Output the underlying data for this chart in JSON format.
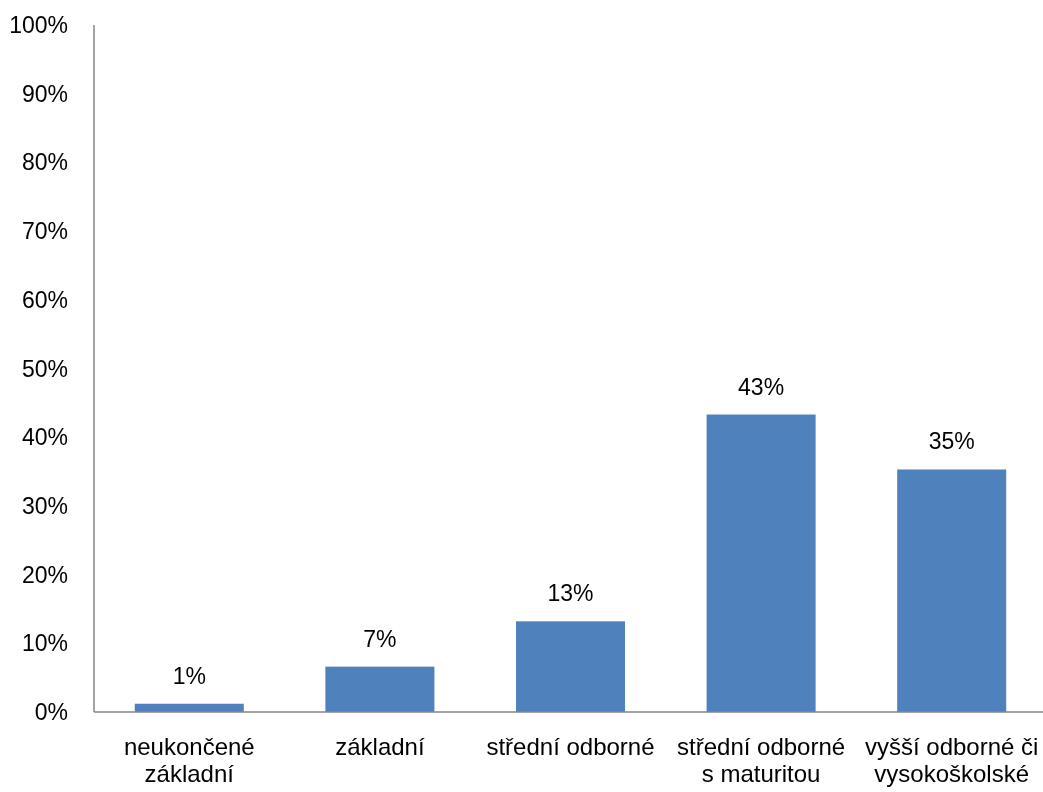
{
  "chart_data": {
    "type": "bar",
    "categories": [
      "neukončené\nzákladní",
      "základní",
      "střední odborné",
      "střední odborné\ns maturitou",
      "vyšší odborné či\nvysokoškolské"
    ],
    "values": [
      1.2,
      6.6,
      13.2,
      43.3,
      35.3
    ],
    "value_labels": [
      "1%",
      "7%",
      "13%",
      "43%",
      "35%"
    ],
    "color": "#4f81bd",
    "ylim": [
      0,
      100
    ],
    "yticks": [
      {
        "value": 0,
        "label": "0%"
      },
      {
        "value": 10,
        "label": "10%"
      },
      {
        "value": 20,
        "label": "20%"
      },
      {
        "value": 30,
        "label": "30%"
      },
      {
        "value": 40,
        "label": "40%"
      },
      {
        "value": 50,
        "label": "50%"
      },
      {
        "value": 60,
        "label": "60%"
      },
      {
        "value": 70,
        "label": "70%"
      },
      {
        "value": 80,
        "label": "80%"
      },
      {
        "value": 90,
        "label": "90%"
      },
      {
        "value": 100,
        "label": "100%"
      }
    ],
    "grid": false
  }
}
